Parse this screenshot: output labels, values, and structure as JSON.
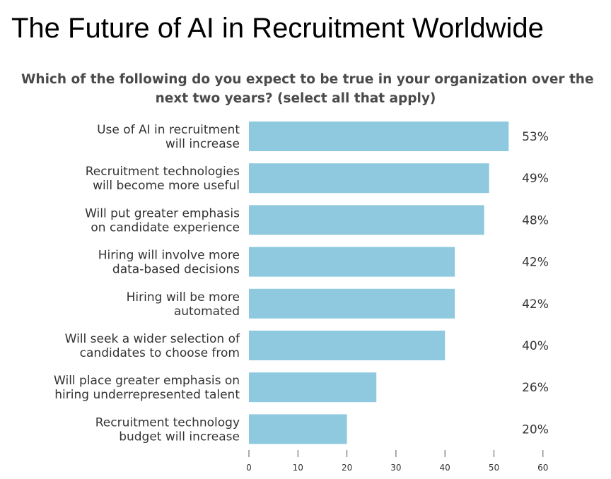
{
  "title": "The Future of AI in Recruitment Worldwide",
  "chart_data": {
    "type": "bar",
    "orientation": "horizontal",
    "title_lines": [
      "Which of the following do you expect to be true in your organization over the",
      "next two years? (select all that apply)"
    ],
    "categories": [
      [
        "Use of AI in recruitment",
        "will increase"
      ],
      [
        "Recruitment technologies",
        "will become more useful"
      ],
      [
        "Will put greater emphasis",
        "on candidate experience"
      ],
      [
        "Hiring will involve more",
        "data-based decisions"
      ],
      [
        "Hiring will be more",
        "automated"
      ],
      [
        "Will seek a wider selection of",
        "candidates to choose from"
      ],
      [
        "Will place greater emphasis on",
        "hiring underrepresented talent"
      ],
      [
        "Recruitment technology",
        "budget will increase"
      ]
    ],
    "values": [
      53,
      49,
      48,
      42,
      42,
      40,
      26,
      20
    ],
    "value_labels": [
      "53%",
      "49%",
      "48%",
      "42%",
      "42%",
      "40%",
      "26%",
      "20%"
    ],
    "xlim": [
      0,
      60
    ],
    "x_ticks": [
      0,
      10,
      20,
      30,
      40,
      50,
      60
    ],
    "grid": false,
    "legend": "none",
    "bar_color": "#8ec9df"
  }
}
